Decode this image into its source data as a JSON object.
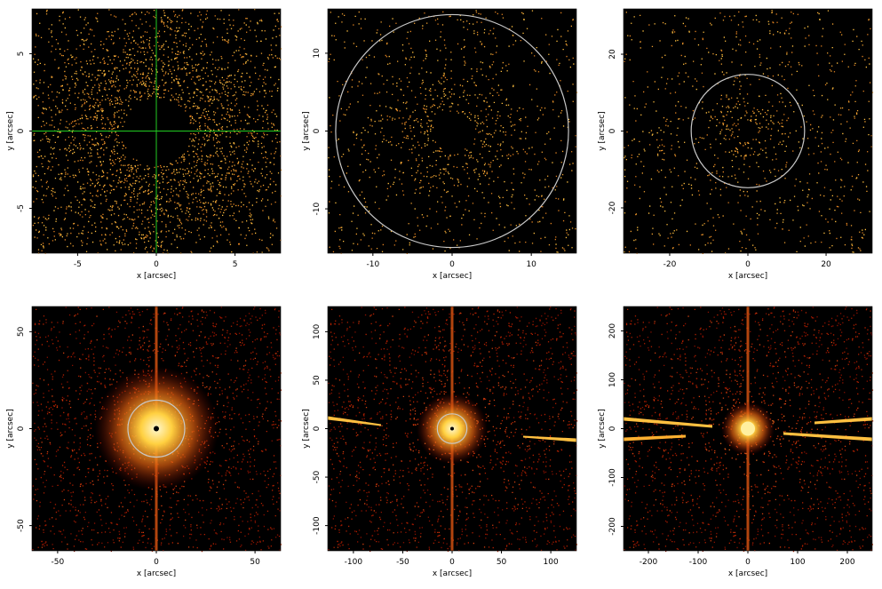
{
  "chart_data": [
    {
      "type": "image",
      "xlabel": "x [arcsec]",
      "ylabel": "y [arcsec]",
      "xlim": [
        -7.9,
        7.9
      ],
      "ylim": [
        -7.9,
        7.9
      ],
      "xticks": [
        -5,
        0,
        5
      ],
      "yticks": [
        -5,
        0,
        5
      ],
      "crosshair_color": "#22cc22"
    },
    {
      "type": "image",
      "xlabel": "x [arcsec]",
      "ylabel": "y [arcsec]",
      "xlim": [
        -15.7,
        15.7
      ],
      "ylim": [
        -15.7,
        15.7
      ],
      "xticks": [
        -10,
        0,
        10
      ],
      "yticks": [
        -10,
        0,
        10
      ],
      "circle_radius": 14.7
    },
    {
      "type": "image",
      "xlabel": "x [arcsec]",
      "ylabel": "y [arcsec]",
      "xlim": [
        -31.8,
        31.8
      ],
      "ylim": [
        -31.8,
        31.8
      ],
      "xticks": [
        -20,
        0,
        20
      ],
      "yticks": [
        -20,
        0,
        20
      ],
      "circle_radius": 14.5
    },
    {
      "type": "image",
      "xlabel": "x [arcsec]",
      "ylabel": "y [arcsec]",
      "xlim": [
        -63,
        63
      ],
      "ylim": [
        -63,
        63
      ],
      "xticks": [
        -50,
        0,
        50
      ],
      "yticks": [
        -50,
        0,
        50
      ],
      "circle_radius": 14.4
    },
    {
      "type": "image",
      "xlabel": "x [arcsec]",
      "ylabel": "y [arcsec]",
      "xlim": [
        -126,
        126
      ],
      "ylim": [
        -126,
        126
      ],
      "xticks": [
        -100,
        -50,
        0,
        50,
        100
      ],
      "yticks": [
        -100,
        -50,
        0,
        50,
        100
      ],
      "circle_radius": 15
    },
    {
      "type": "image",
      "xlabel": "x [arcsec]",
      "ylabel": "y [arcsec]",
      "xlim": [
        -250,
        250
      ],
      "ylim": [
        -250,
        250
      ],
      "xticks": [
        -200,
        -100,
        0,
        100,
        200
      ],
      "yticks": [
        -200,
        -100,
        0,
        100,
        200
      ]
    }
  ]
}
